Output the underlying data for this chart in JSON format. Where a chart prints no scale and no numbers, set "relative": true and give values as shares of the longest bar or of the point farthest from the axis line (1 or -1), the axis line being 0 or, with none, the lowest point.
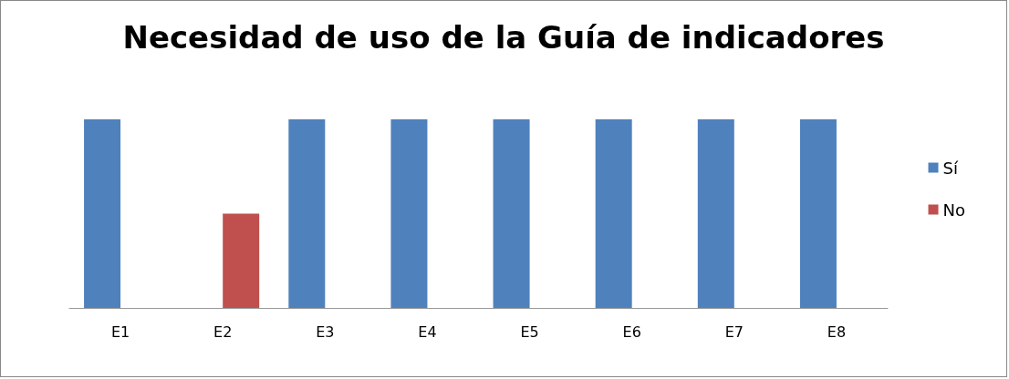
{
  "chart_data": {
    "type": "bar",
    "title": "Necesidad de uso de la Guía de indicadores",
    "categories": [
      "E1",
      "E2",
      "E3",
      "E4",
      "E5",
      "E6",
      "E7",
      "E8"
    ],
    "relative": true,
    "legend": "right",
    "series": [
      {
        "name": "Sí",
        "color": "#4f81bd",
        "values": [
          1,
          0,
          1,
          1,
          1,
          1,
          1,
          1
        ]
      },
      {
        "name": "No",
        "color": "#c0504d",
        "values": [
          0,
          0.5,
          0,
          0,
          0,
          0,
          0,
          0
        ]
      }
    ]
  }
}
